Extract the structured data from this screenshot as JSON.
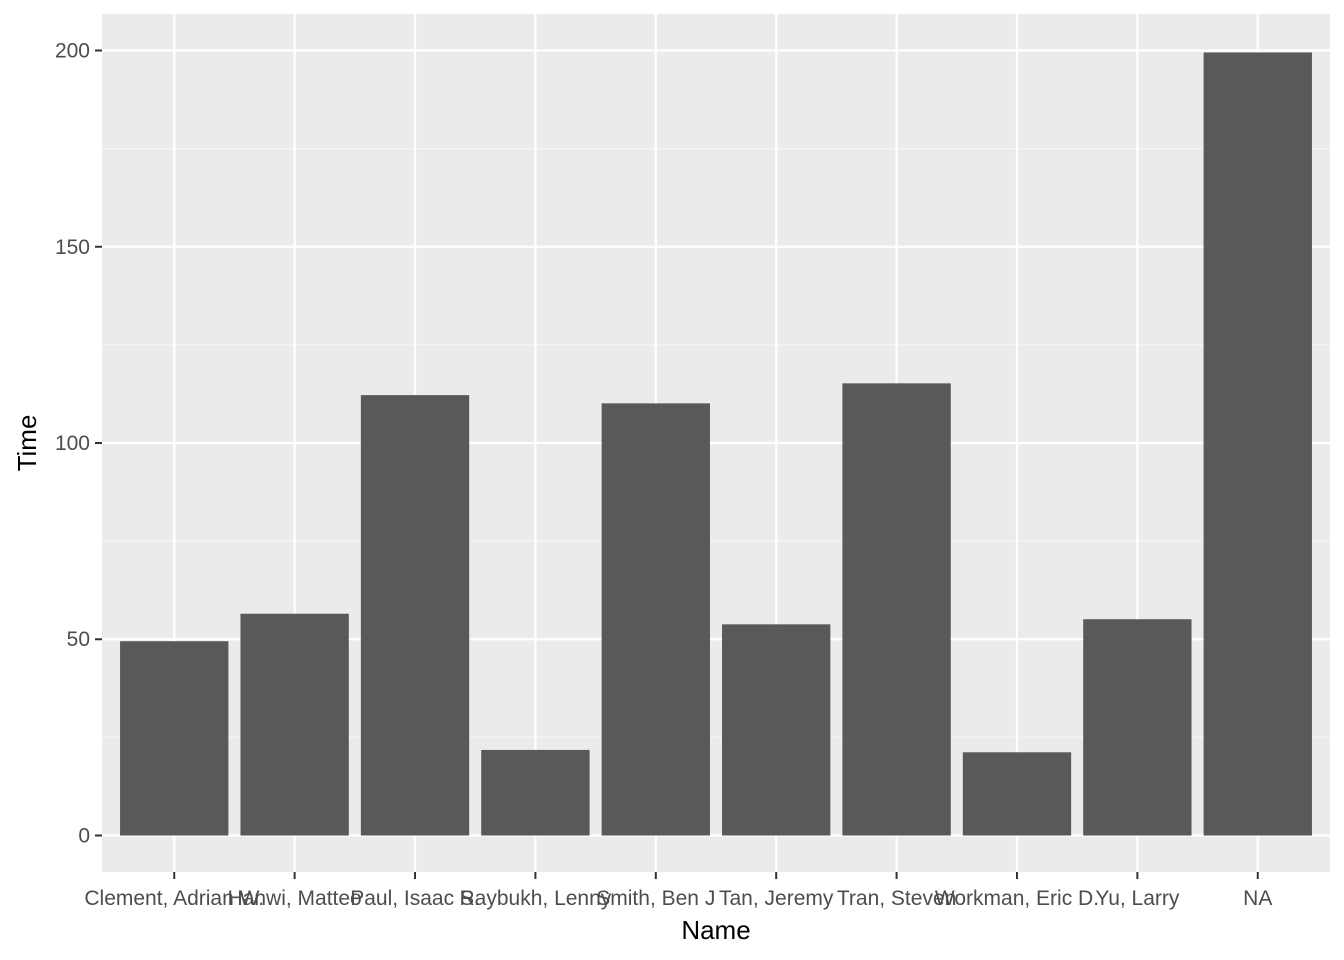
{
  "chart_data": {
    "type": "bar",
    "title": "",
    "xlabel": "Name",
    "ylabel": "Time",
    "categories": [
      "Clement, Adrian W.",
      "Hanwi, Matteo",
      "Paul, Isaac S.",
      "Raybukh, Lenny",
      "Smith, Ben J",
      "Tan, Jeremy",
      "Tran, Steven",
      "Workman, Eric D.",
      "Yu, Larry",
      "NA"
    ],
    "values": [
      49.5,
      56.5,
      112.2,
      21.8,
      110.1,
      53.8,
      115.2,
      21.2,
      55.1,
      199.5
    ],
    "ylim": [
      -9.3,
      209.3
    ],
    "yticks": [
      0,
      50,
      100,
      150,
      200
    ],
    "grid": true,
    "colors": {
      "panel_background": "#ebebeb",
      "grid_major": "#ffffff",
      "bar_fill": "#595959",
      "tick_text": "#4d4d4d",
      "tick_mark": "#333333",
      "axis_title": "#000000"
    }
  }
}
